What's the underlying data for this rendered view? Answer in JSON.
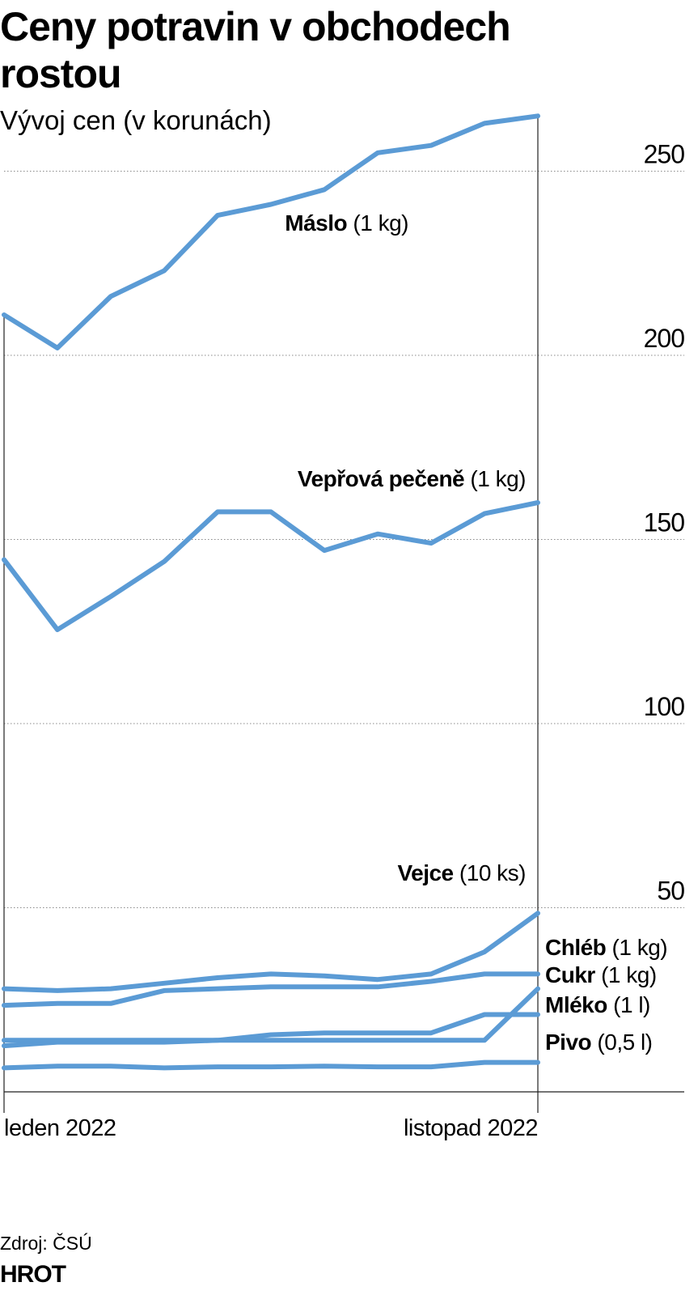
{
  "chart_data": {
    "type": "line",
    "title_lines": [
      "Ceny potravin v obchodech",
      "rostou"
    ],
    "subtitle": "Vývoj cen (v korunách)",
    "x_tick_labels": [
      "leden 2022",
      "listopad 2022"
    ],
    "x": [
      "2022-01",
      "2022-02",
      "2022-03",
      "2022-04",
      "2022-05",
      "2022-06",
      "2022-07",
      "2022-08",
      "2022-09",
      "2022-10",
      "2022-11"
    ],
    "ylim": [
      0,
      262
    ],
    "y_ticks": [
      50,
      100,
      150,
      200,
      250
    ],
    "grid": "horizontal dotted",
    "line_color": "#5b9bd5",
    "series": [
      {
        "name": "Máslo",
        "unit": "(1 kg)",
        "label_at": "inline",
        "values": [
          211,
          202,
          216,
          223,
          238,
          241,
          245,
          255,
          257,
          263,
          265
        ]
      },
      {
        "name": "Vepřová pečeně",
        "unit": "(1 kg)",
        "label_at": "inline",
        "values": [
          144.5,
          125.5,
          134.5,
          144,
          157.5,
          157.5,
          147,
          151.5,
          149,
          157,
          160
        ]
      },
      {
        "name": "Vejce",
        "unit": "(10 ks)",
        "label_at": "inline",
        "values": [
          28,
          27.5,
          28,
          29.5,
          31,
          32,
          31.5,
          30.5,
          32,
          38,
          48.5
        ]
      },
      {
        "name": "Chléb",
        "unit": "(1 kg)",
        "label_at": "right",
        "values": [
          23.5,
          24,
          24,
          27.5,
          28,
          28.5,
          28.5,
          28.5,
          30,
          32,
          32
        ]
      },
      {
        "name": "Cukr",
        "unit": "(1 kg)",
        "label_at": "right",
        "values": [
          12.5,
          13.5,
          13.5,
          13.5,
          14,
          15.5,
          16,
          16,
          16,
          21,
          21
        ]
      },
      {
        "name": "Mléko",
        "unit": "(1 l)",
        "label_at": "right",
        "values": [
          14,
          14,
          14,
          14,
          14,
          14,
          14,
          14,
          14,
          14,
          28
        ]
      },
      {
        "name": "Pivo",
        "unit": "(0,5 l)",
        "label_at": "right",
        "values": [
          6.5,
          7,
          7,
          6.5,
          6.8,
          6.8,
          7,
          6.8,
          6.8,
          8,
          8
        ]
      }
    ]
  },
  "footer": {
    "source": "Zdroj: ČSÚ",
    "logo": "HROT"
  }
}
